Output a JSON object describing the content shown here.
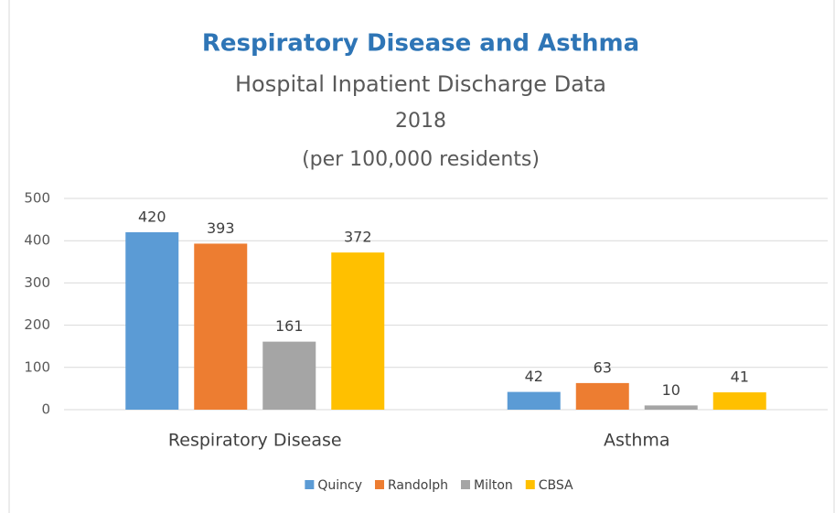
{
  "chart_data": {
    "type": "bar",
    "title": "Respiratory Disease and Asthma",
    "subtitle": [
      "Hospital Inpatient Discharge Data",
      "2018",
      "(per 100,000 residents)"
    ],
    "categories": [
      "Respiratory Disease",
      "Asthma"
    ],
    "series": [
      {
        "name": "Quincy",
        "color": "#5b9bd5",
        "values": [
          420,
          42
        ]
      },
      {
        "name": "Randolph",
        "color": "#ed7d31",
        "values": [
          393,
          63
        ]
      },
      {
        "name": "Milton",
        "color": "#a5a5a5",
        "values": [
          161,
          10
        ]
      },
      {
        "name": "CBSA",
        "color": "#ffc000",
        "values": [
          372,
          41
        ]
      }
    ],
    "ylim": [
      0,
      500
    ],
    "yticks": [
      0,
      100,
      200,
      300,
      400,
      500
    ],
    "grid": true,
    "legend": "bottom"
  }
}
